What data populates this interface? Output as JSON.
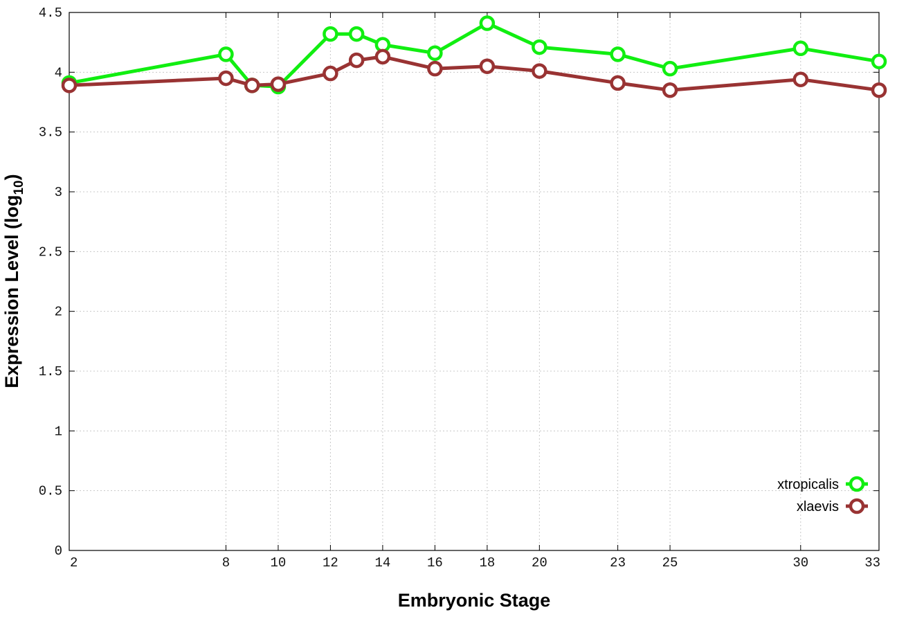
{
  "chart_data": {
    "type": "line",
    "title": "",
    "xlabel": "Embryonic Stage",
    "ylabel_main": "Expression Level (log",
    "ylabel_sub": "10",
    "ylabel_close": ")",
    "xlim": [
      2,
      33
    ],
    "ylim": [
      0,
      4.5
    ],
    "x_ticks": [
      2,
      8,
      10,
      12,
      14,
      16,
      18,
      20,
      23,
      25,
      30,
      33
    ],
    "y_ticks": [
      0,
      0.5,
      1,
      1.5,
      2,
      2.5,
      3,
      3.5,
      4,
      4.5
    ],
    "y_tick_labels": [
      "0",
      "0.5",
      "1",
      "1.5",
      "2",
      "2.5",
      "3",
      "3.5",
      "4",
      "4.5"
    ],
    "grid": true,
    "legend_position": "bottom-right",
    "series": [
      {
        "name": "xtropicalis",
        "color": "#11ee11",
        "x": [
          2,
          8,
          9,
          10,
          12,
          13,
          14,
          16,
          18,
          20,
          23,
          25,
          30,
          33
        ],
        "y": [
          3.91,
          4.15,
          3.89,
          3.88,
          4.32,
          4.32,
          4.23,
          4.16,
          4.41,
          4.21,
          4.15,
          4.03,
          4.2,
          4.09
        ]
      },
      {
        "name": "xlaevis",
        "color": "#993333",
        "x": [
          2,
          8,
          9,
          10,
          12,
          13,
          14,
          16,
          18,
          20,
          23,
          25,
          30,
          33
        ],
        "y": [
          3.89,
          3.95,
          3.89,
          3.9,
          3.99,
          4.1,
          4.13,
          4.03,
          4.05,
          4.01,
          3.91,
          3.85,
          3.94,
          3.85
        ]
      }
    ]
  }
}
